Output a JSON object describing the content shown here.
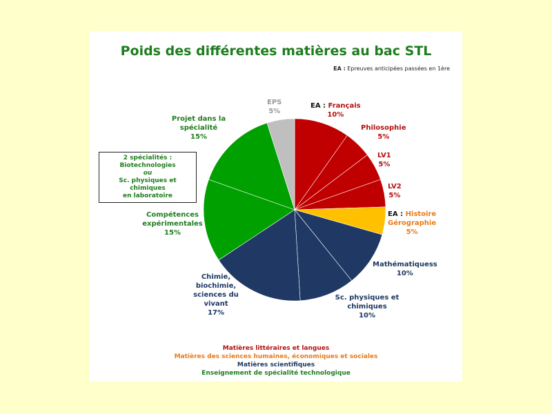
{
  "chart_data": {
    "type": "pie",
    "title": "Poids des différentes matières au bac STL",
    "note_prefix": "EA :",
    "note_text": "Epreuves anticipées passées en 1ère",
    "slices": [
      {
        "prefix": "EA : ",
        "label": "Français",
        "value": 10,
        "value_label": "10%",
        "color": "#c00000",
        "label_color": "#b50e0e"
      },
      {
        "prefix": "",
        "label": "Philosophie",
        "value": 5,
        "value_label": "5%",
        "color": "#c00000",
        "label_color": "#b50e0e"
      },
      {
        "prefix": "",
        "label": "LV1",
        "value": 5,
        "value_label": "5%",
        "color": "#c00000",
        "label_color": "#b50e0e"
      },
      {
        "prefix": "",
        "label": "LV2",
        "value": 5,
        "value_label": "5%",
        "color": "#c00000",
        "label_color": "#b50e0e"
      },
      {
        "prefix": "EA : ",
        "label": "Histoire Gérographie",
        "value": 5,
        "value_label": "5%",
        "color": "#ffc000",
        "label_color": "#e87a17"
      },
      {
        "prefix": "",
        "label": "Mathématiquess",
        "value": 10,
        "value_label": "10%",
        "color": "#1f3864",
        "label_color": "#1c3763"
      },
      {
        "prefix": "",
        "label": "Sc. physiques et chimiques",
        "value": 10,
        "value_label": "10%",
        "color": "#1f3864",
        "label_color": "#1c3763"
      },
      {
        "prefix": "",
        "label": "Chimie, biochimie, sciences du vivant",
        "value": 17,
        "value_label": "17%",
        "color": "#1f3864",
        "label_color": "#1c3763"
      },
      {
        "prefix": "",
        "label": "Compétences expérimentales",
        "value": 15,
        "value_label": "15%",
        "color": "#00a000",
        "label_color": "#1e7d1e"
      },
      {
        "prefix": "",
        "label": "Projet dans la spécialité",
        "value": 15,
        "value_label": "15%",
        "color": "#00a000",
        "label_color": "#1e7d1e"
      },
      {
        "prefix": "",
        "label": "EPS",
        "value": 5,
        "value_label": "5%",
        "color": "#bfbfbf",
        "label_color": "#9a9a9a"
      }
    ],
    "box": {
      "line1": "2 spécialités :",
      "line2": "Biotechnologies",
      "line3": "ou",
      "line4": "Sc. physiques et chimiques",
      "line5": "en laboratoire"
    },
    "legend": [
      {
        "label": "Matières littéraires et langues",
        "color": "#b50e0e"
      },
      {
        "label": "Matières des sciences humaines, économiques et sociales",
        "color": "#e87a17"
      },
      {
        "label": "Matières scientifiques",
        "color": "#1c3763"
      },
      {
        "label": "Enseignement de spécialité technologique",
        "color": "#1e7d1e"
      }
    ]
  }
}
